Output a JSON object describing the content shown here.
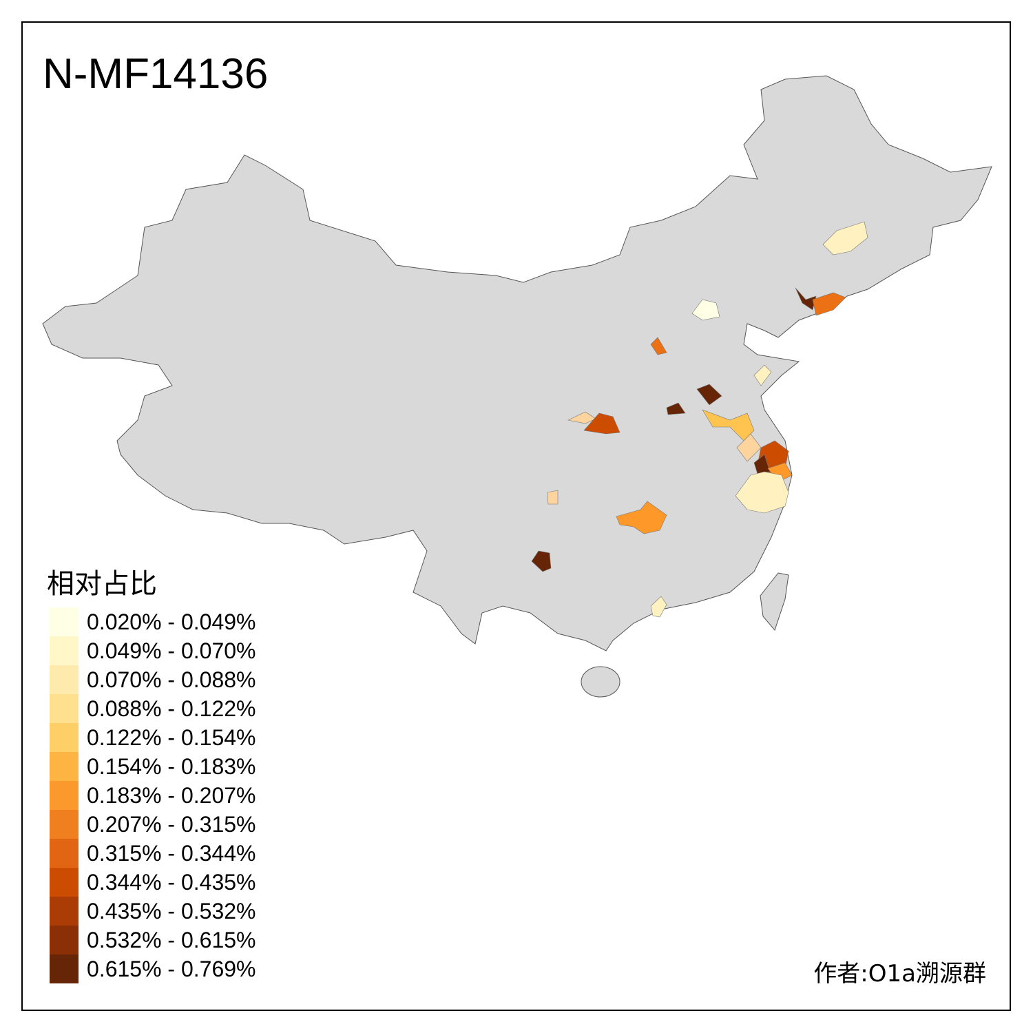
{
  "title": "N-MF14136",
  "author": "作者:O1a溯源群",
  "map": {
    "base_fill": "#d9d9d9",
    "border_color": "#555555",
    "region_fill_colors": [
      "#fff2c0",
      "#fdd49e",
      "#ec7014",
      "#cc4c02",
      "#662506",
      "#fec44f",
      "#fe9929",
      "#993404",
      "#ffffe5"
    ]
  },
  "legend": {
    "title": "相对占比",
    "items": [
      {
        "label": "0.020% - 0.049%",
        "color": "#ffffe5"
      },
      {
        "label": "0.049% - 0.070%",
        "color": "#fff7c8"
      },
      {
        "label": "0.070% - 0.088%",
        "color": "#feeaad"
      },
      {
        "label": "0.088% - 0.122%",
        "color": "#fee08f"
      },
      {
        "label": "0.122% - 0.154%",
        "color": "#fecf66"
      },
      {
        "label": "0.154% - 0.183%",
        "color": "#feb443"
      },
      {
        "label": "0.183% - 0.207%",
        "color": "#fb992c"
      },
      {
        "label": "0.207% - 0.315%",
        "color": "#f07f1f"
      },
      {
        "label": "0.315% - 0.344%",
        "color": "#e16513"
      },
      {
        "label": "0.344% - 0.435%",
        "color": "#cc4c02"
      },
      {
        "label": "0.435% - 0.532%",
        "color": "#ac3c05"
      },
      {
        "label": "0.532% - 0.615%",
        "color": "#8b2f06"
      },
      {
        "label": "0.615% - 0.769%",
        "color": "#662506"
      }
    ]
  }
}
